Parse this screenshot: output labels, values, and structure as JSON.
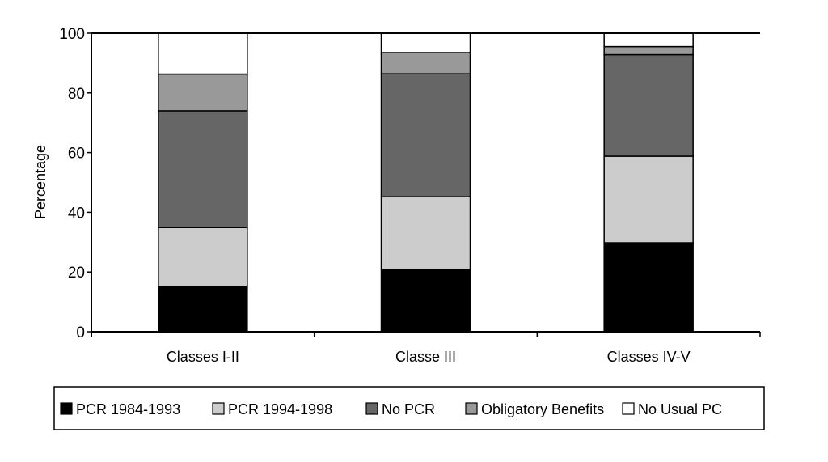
{
  "chart_data": {
    "type": "bar",
    "stacked": true,
    "title": "",
    "xlabel": "",
    "ylabel": "Percentage",
    "ylim": [
      0,
      100
    ],
    "yticks": [
      0,
      20,
      40,
      60,
      80,
      100
    ],
    "grid": false,
    "legend_position": "bottom",
    "categories": [
      "Classes I-II",
      "Classe III",
      "Classes IV-V"
    ],
    "series": [
      {
        "name": "PCR 1984-1993",
        "color": "#000000",
        "values": [
          15.2,
          20.8,
          29.8
        ]
      },
      {
        "name": "PCR 1994-1998",
        "color": "#cccccc",
        "values": [
          19.7,
          24.4,
          29.0
        ]
      },
      {
        "name": "No PCR",
        "color": "#666666",
        "values": [
          39.1,
          41.2,
          34.0
        ]
      },
      {
        "name": "Obligatory Benefits",
        "color": "#999999",
        "values": [
          12.3,
          7.1,
          2.7
        ]
      },
      {
        "name": "No Usual PC",
        "color": "#ffffff",
        "values": [
          13.7,
          6.5,
          4.5
        ]
      }
    ]
  }
}
